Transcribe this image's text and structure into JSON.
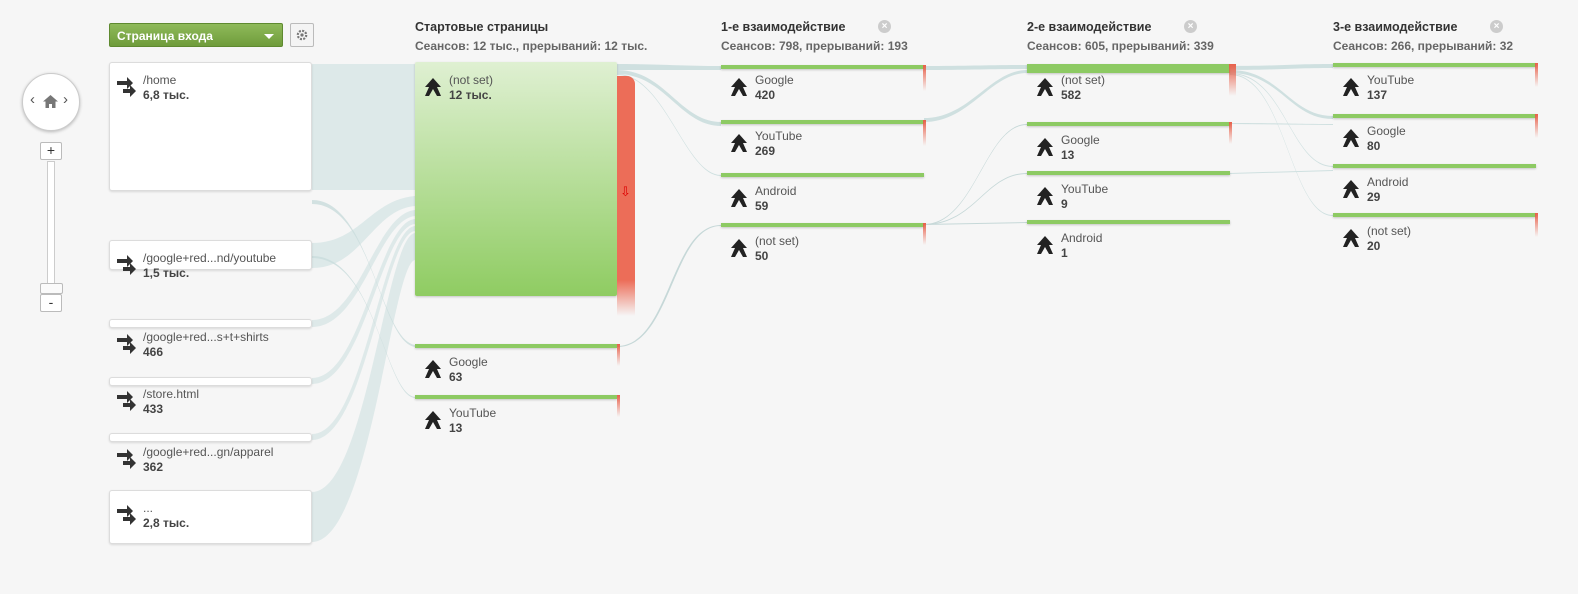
{
  "controls": {
    "dimension_dropdown": "Страница входа",
    "settings_icon": "gear-icon",
    "nav_left": "‹",
    "nav_home_icon": "home-icon",
    "nav_right": "›",
    "zoom_in": "+",
    "zoom_out": "-"
  },
  "columns": [
    {
      "title": "Стартовые страницы",
      "subtitle": "Сеансов: 12 тыс., прерываний: 12 тыс."
    },
    {
      "title": "1-е взаимодействие",
      "subtitle": "Сеансов: 798, прерываний: 193"
    },
    {
      "title": "2-е взаимодействие",
      "subtitle": "Сеансов: 605, прерываний: 339"
    },
    {
      "title": "3-е взаимодействие",
      "subtitle": "Сеансов: 266, прерываний: 32"
    }
  ],
  "landing_pages": [
    {
      "label": "/home",
      "value": "6,8 тыс."
    },
    {
      "label": "/google+red...nd/youtube",
      "value": "1,5 тыс."
    },
    {
      "label": "/google+red...s+t+shirts",
      "value": "466"
    },
    {
      "label": "/store.html",
      "value": "433"
    },
    {
      "label": "/google+red...gn/apparel",
      "value": "362"
    },
    {
      "label": "...",
      "value": "2,8 тыс."
    }
  ],
  "start_nodes": [
    {
      "label": "(not set)",
      "value": "12 тыс."
    },
    {
      "label": "Google",
      "value": "63"
    },
    {
      "label": "YouTube",
      "value": "13"
    }
  ],
  "interaction1": [
    {
      "label": "Google",
      "value": "420"
    },
    {
      "label": "YouTube",
      "value": "269"
    },
    {
      "label": "Android",
      "value": "59"
    },
    {
      "label": "(not set)",
      "value": "50"
    }
  ],
  "interaction2": [
    {
      "label": "(not set)",
      "value": "582"
    },
    {
      "label": "Google",
      "value": "13"
    },
    {
      "label": "YouTube",
      "value": "9"
    },
    {
      "label": "Android",
      "value": "1"
    }
  ],
  "interaction3": [
    {
      "label": "YouTube",
      "value": "137"
    },
    {
      "label": "Google",
      "value": "80"
    },
    {
      "label": "Android",
      "value": "29"
    },
    {
      "label": "(not set)",
      "value": "20"
    }
  ],
  "colors": {
    "node_green": "#8dca63",
    "dropoff_red": "#e8604a",
    "flow": "#d5e3e3",
    "dropdown_green": "#7aa645"
  }
}
